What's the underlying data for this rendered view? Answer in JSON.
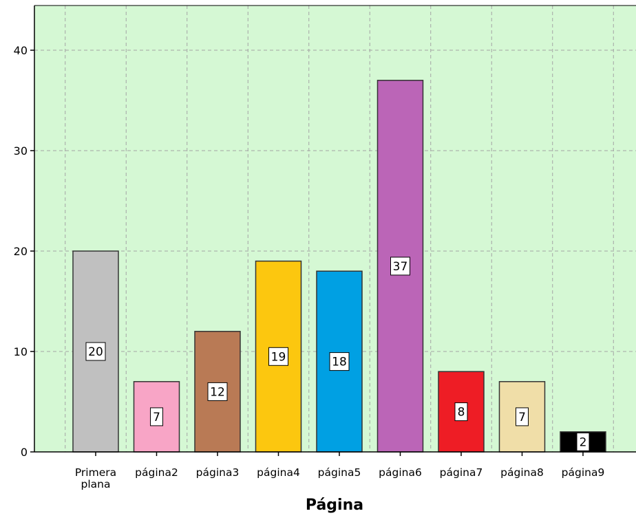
{
  "chart_data": {
    "type": "bar",
    "title": "",
    "xlabel": "Página",
    "ylabel": "",
    "categories": [
      "Primera plana",
      "página2",
      "página3",
      "página4",
      "página5",
      "página6",
      "página7",
      "página8",
      "página9"
    ],
    "values": [
      20,
      7,
      12,
      19,
      18,
      37,
      8,
      7,
      2
    ],
    "data_labels": [
      "20",
      "7",
      "12",
      "19",
      "18",
      "37",
      "8",
      "7",
      "2"
    ],
    "bar_colors": [
      "#c0c0c0",
      "#f8a5c6",
      "#b97a55",
      "#fcc70f",
      "#00a0e3",
      "#bb65b7",
      "#ee1d25",
      "#f0dea8",
      "#000000"
    ],
    "ylim": [
      0,
      44
    ],
    "yticks": [
      0,
      10,
      20,
      30,
      40
    ],
    "ytick_labels": [
      "0",
      "10",
      "20",
      "30",
      "40"
    ],
    "grid": true,
    "legend": "none",
    "colors": {
      "plot_background": "#d5f8d4",
      "gridline": "#a3a3a3",
      "axis": "#000000",
      "bar_outline": "#333333"
    }
  }
}
